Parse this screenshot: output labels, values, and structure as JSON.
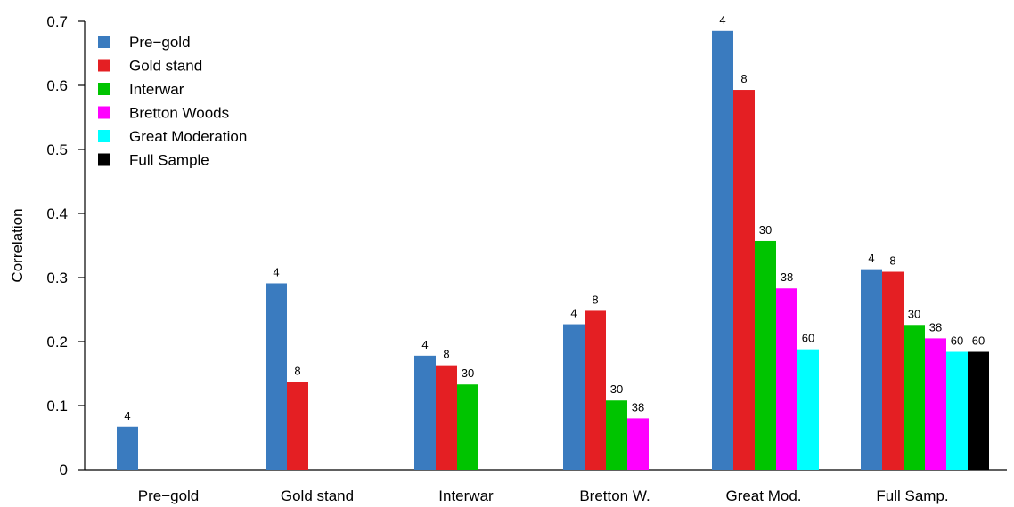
{
  "chart_data": {
    "type": "bar",
    "ylabel": "Correlation",
    "xlabel": "",
    "ylim": [
      0,
      0.7
    ],
    "yticks": [
      "0",
      "0.1",
      "0.2",
      "0.3",
      "0.4",
      "0.5",
      "0.6",
      "0.7"
    ],
    "legend_position": "top-left",
    "categories": [
      "Pre−gold",
      "Gold stand",
      "Interwar",
      "Bretton W.",
      "Great Mod.",
      "Full Samp."
    ],
    "series": [
      {
        "name": "Pre−gold",
        "color": "#3a7bbf",
        "values": [
          0.067,
          0.291,
          0.178,
          0.227,
          0.685,
          0.313
        ]
      },
      {
        "name": "Gold stand",
        "color": "#e41f23",
        "values": [
          null,
          0.137,
          0.163,
          0.248,
          0.593,
          0.309
        ]
      },
      {
        "name": "Interwar",
        "color": "#00c400",
        "values": [
          null,
          null,
          0.133,
          0.108,
          0.357,
          0.226
        ]
      },
      {
        "name": "Bretton Woods",
        "color": "#ff00ff",
        "values": [
          null,
          null,
          null,
          0.08,
          0.283,
          0.205
        ]
      },
      {
        "name": "Great Moderation",
        "color": "#00ffff",
        "values": [
          null,
          null,
          null,
          null,
          0.188,
          0.184
        ]
      },
      {
        "name": "Full Sample",
        "color": "#000000",
        "values": [
          null,
          null,
          null,
          null,
          null,
          0.184
        ]
      }
    ],
    "bar_labels": [
      "4",
      "8",
      "30",
      "38",
      "60",
      "60"
    ]
  }
}
